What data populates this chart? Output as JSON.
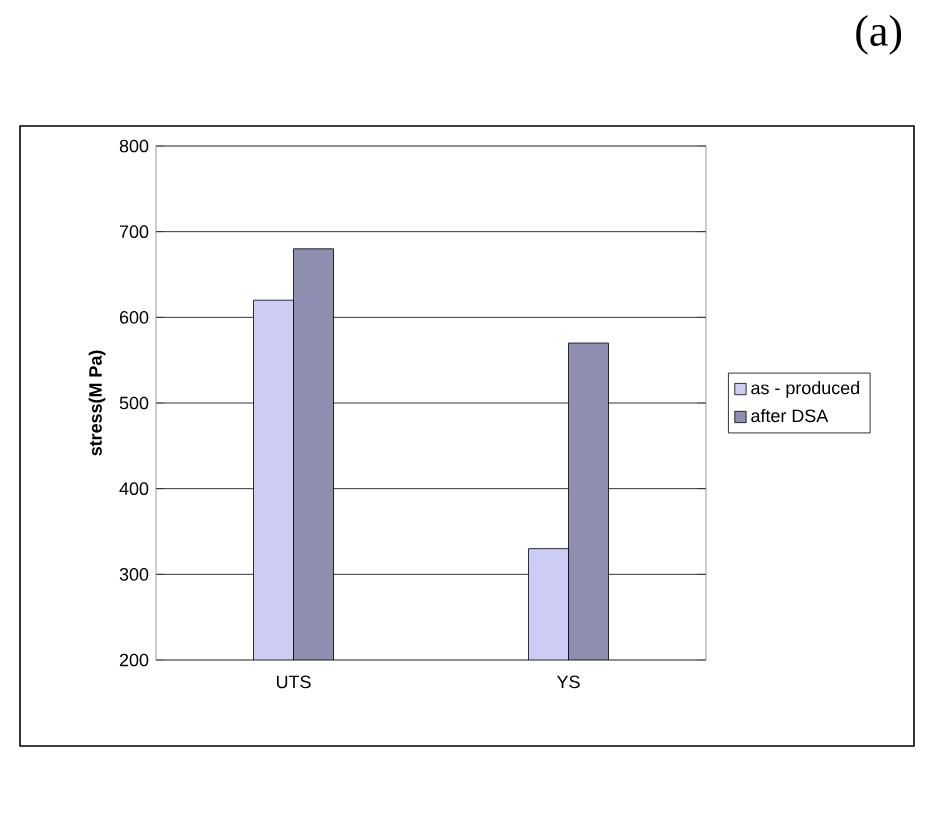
{
  "chart_data": {
    "type": "bar",
    "ylabel": "stress(M Pa)",
    "categories": [
      "UTS",
      "YS"
    ],
    "series": [
      {
        "name": "as - produced",
        "color": "#ccccf5",
        "values": [
          620,
          330
        ]
      },
      {
        "name": "after DSA",
        "color": "#8e8eb0",
        "values": [
          680,
          570
        ]
      }
    ],
    "ylim": [
      200,
      800
    ],
    "yticks": [
      200,
      300,
      400,
      500,
      600,
      700,
      800
    ],
    "grid": "y",
    "legend": "right",
    "annotations": [
      "(a)"
    ]
  }
}
